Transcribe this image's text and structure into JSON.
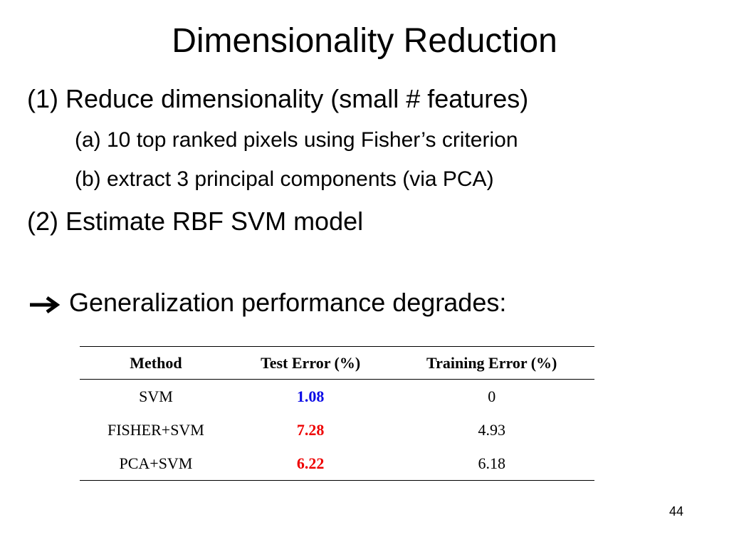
{
  "slide": {
    "title": "Dimensionality Reduction",
    "items": [
      {
        "text": "(1) Reduce dimensionality (small # features)",
        "subitems": [
          "(a) 10 top ranked pixels using Fisher’s criterion",
          "(b) extract 3 principal components (via PCA)"
        ]
      },
      {
        "text": "(2) Estimate RBF SVM model",
        "subitems": []
      }
    ],
    "conclusion": "Generalization performance degrades:",
    "table": {
      "header": [
        "Method",
        "Test Error (%)",
        "Training Error (%)"
      ],
      "rows": [
        [
          "SVM",
          "1.08",
          "0"
        ],
        [
          "FISHER+SVM",
          "7.28",
          "4.93"
        ],
        [
          "PCA+SVM",
          "6.22",
          "6.18"
        ]
      ],
      "test_error_colors": [
        "#0a0ae6",
        "#ee0000",
        "#ee0000"
      ]
    },
    "page_number": "44"
  }
}
